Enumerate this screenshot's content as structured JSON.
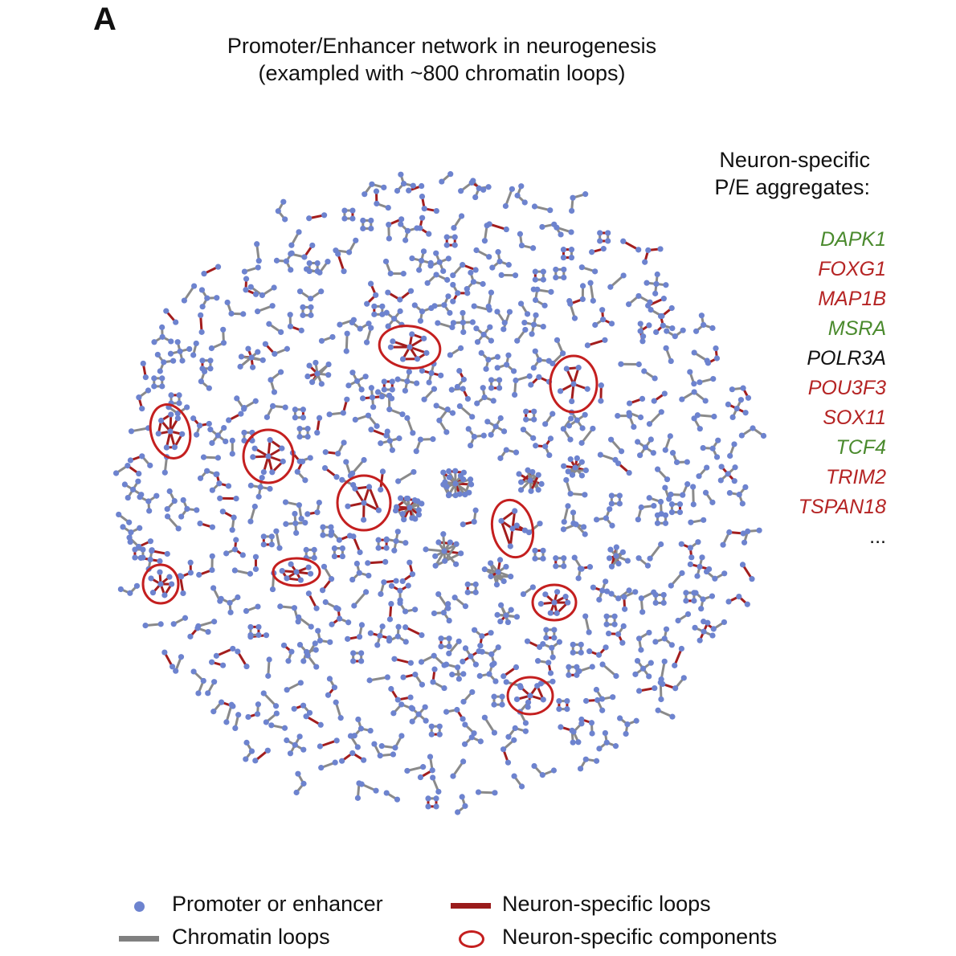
{
  "panel_letter": "A",
  "title": {
    "line1": "Promoter/Enhancer network in neurogenesis",
    "line2": "(exampled with ~800 chromatin loops)"
  },
  "aggregates": {
    "heading_line1": "Neuron-specific",
    "heading_line2": "P/E aggregates:",
    "genes": [
      {
        "name": "DAPK1",
        "color": "#4a8a2d"
      },
      {
        "name": "FOXG1",
        "color": "#b52424"
      },
      {
        "name": "MAP1B",
        "color": "#b52424"
      },
      {
        "name": "MSRA",
        "color": "#4a8a2d"
      },
      {
        "name": "POLR3A",
        "color": "#111111"
      },
      {
        "name": "POU3F3",
        "color": "#b52424"
      },
      {
        "name": "SOX11",
        "color": "#b52424"
      },
      {
        "name": "TCF4",
        "color": "#4a8a2d"
      },
      {
        "name": "TRIM2",
        "color": "#b52424"
      },
      {
        "name": "TSPAN18",
        "color": "#b52424"
      }
    ],
    "ellipsis": "..."
  },
  "legend": {
    "node": "Promoter or enhancer",
    "loop": "Chromatin loops",
    "neuron_loop": "Neuron-specific loops",
    "neuron_component": "Neuron-specific components"
  },
  "colors": {
    "node": "#6d83cf",
    "loop": "#8a8a8a",
    "neuron_loop": "#a31d1d",
    "component_ring": "#c41f1f"
  }
}
